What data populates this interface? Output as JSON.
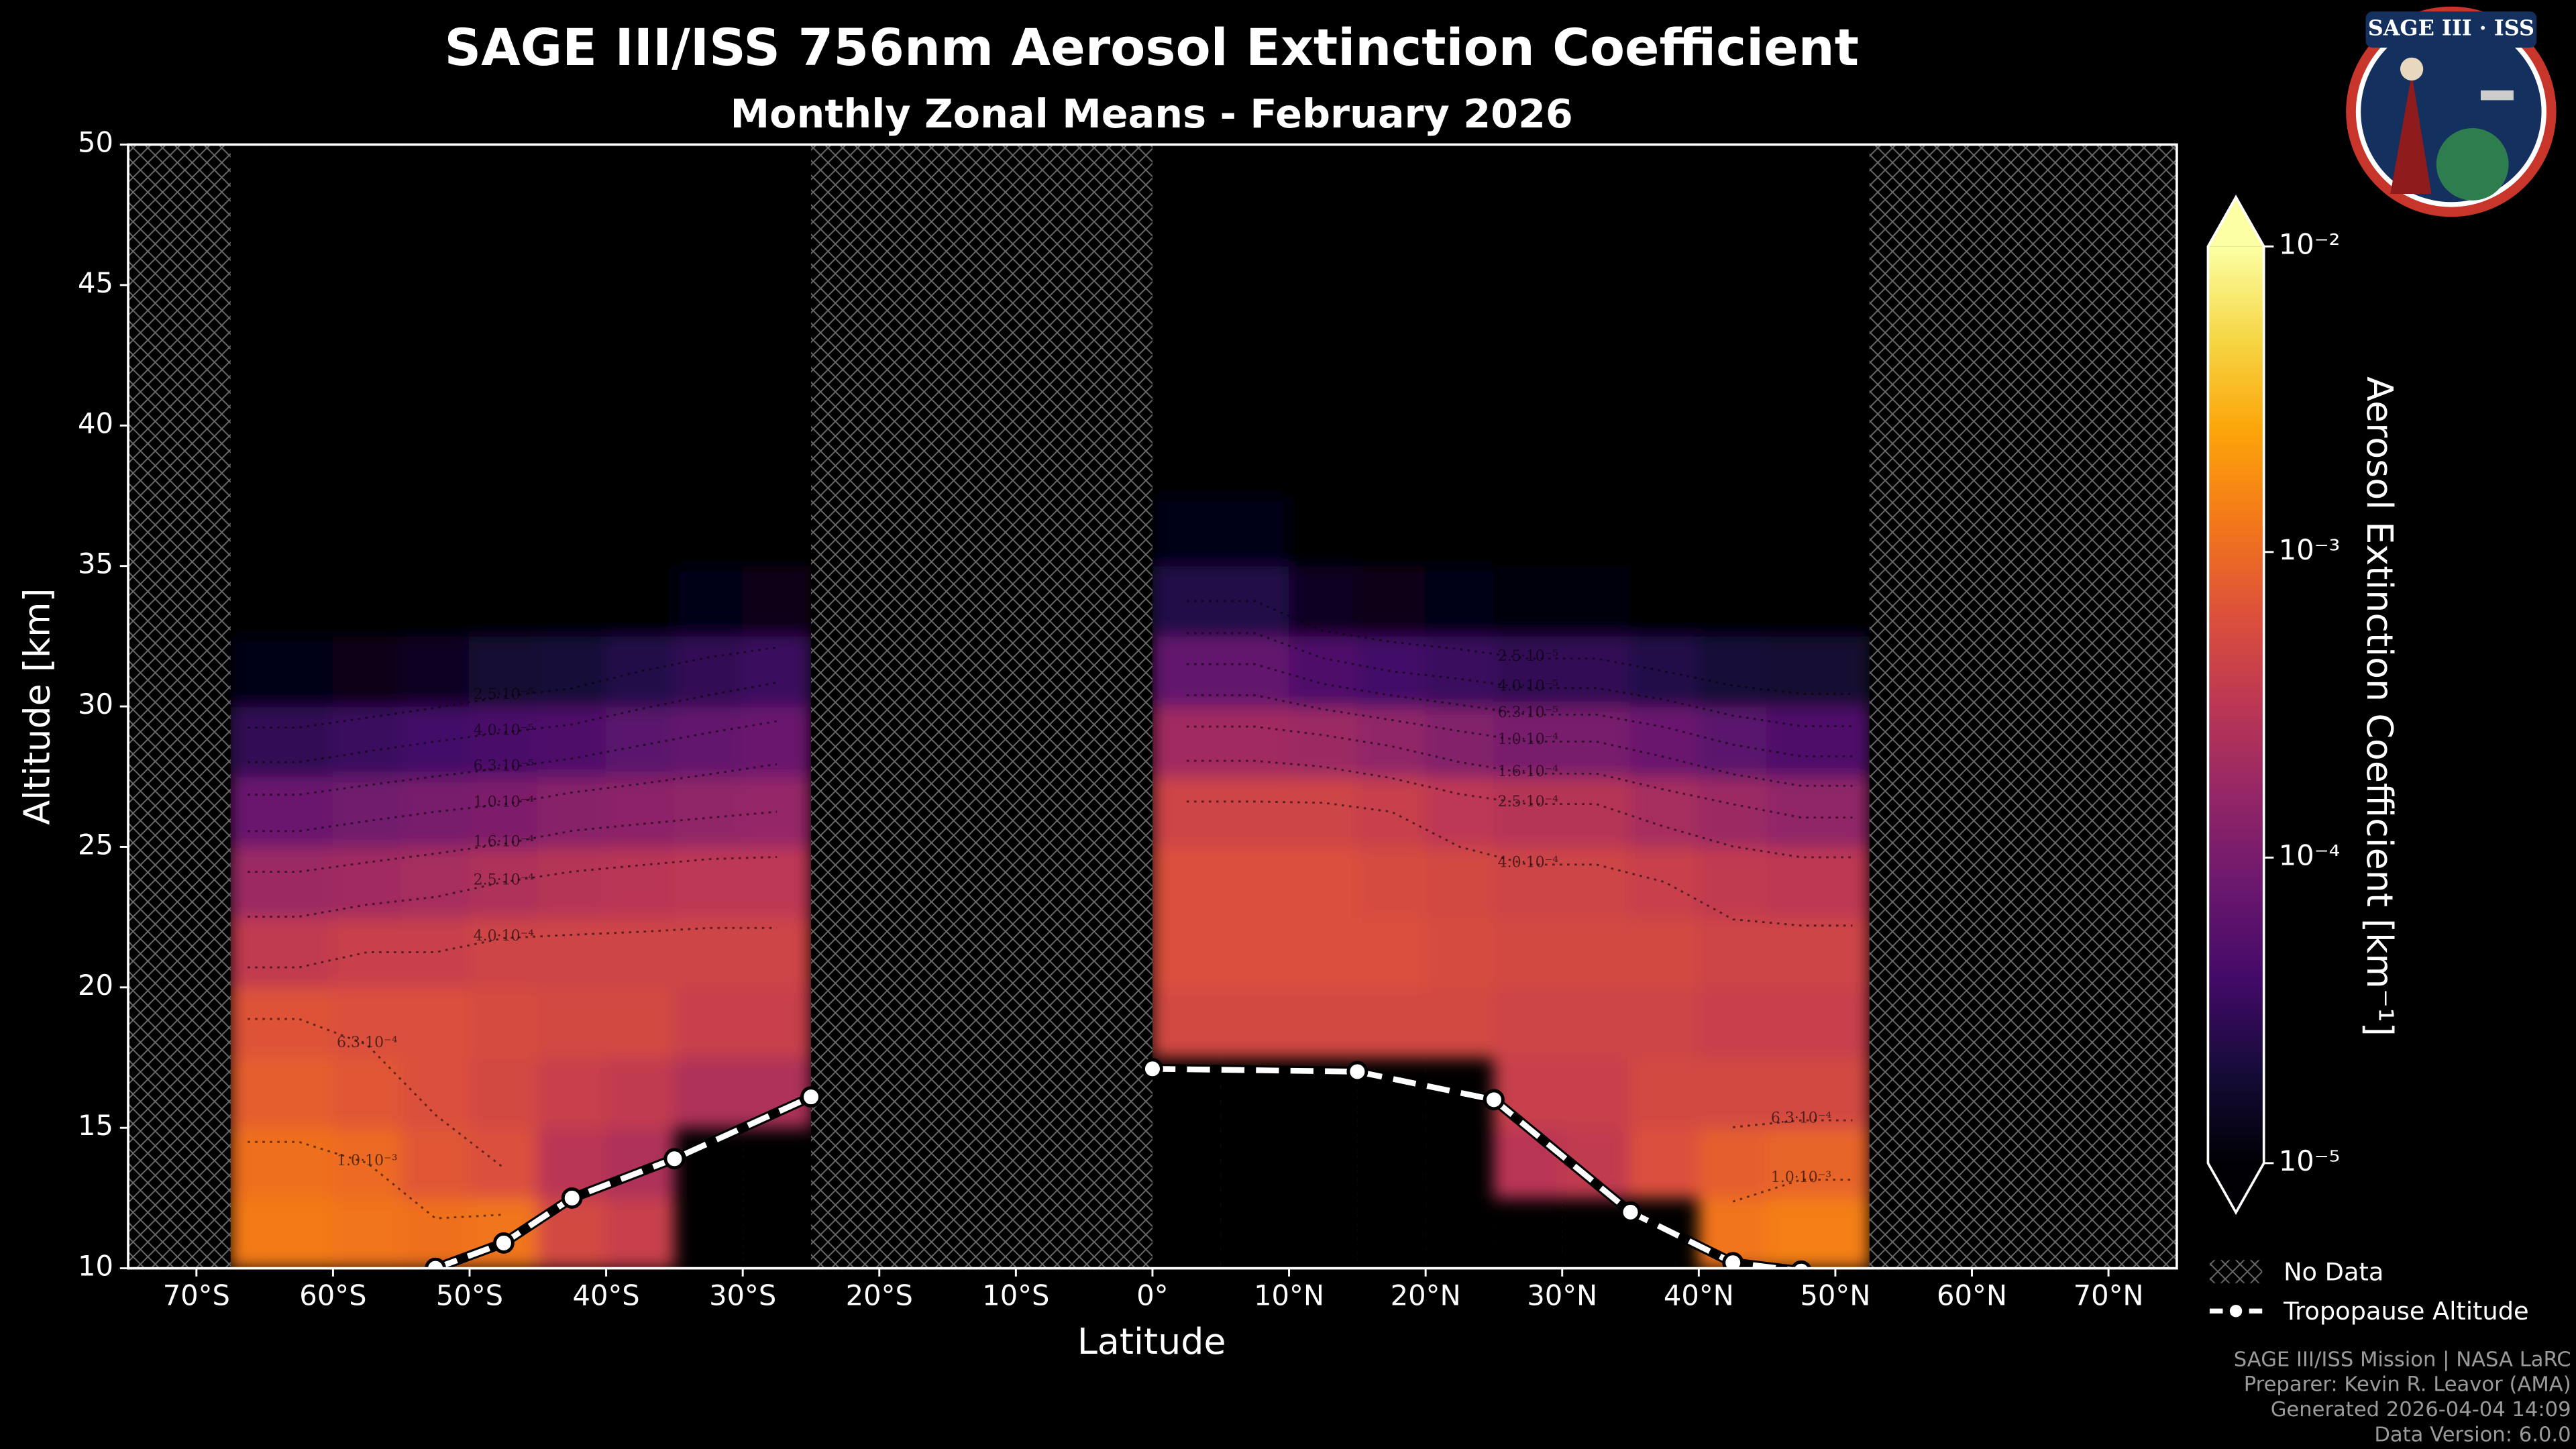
{
  "chart_data": {
    "type": "heatmap",
    "title": "SAGE III/ISS 756nm Aerosol Extinction Coefficient",
    "subtitle": "Monthly Zonal Means - February 2026",
    "xlabel": "Latitude",
    "ylabel": "Altitude [km]",
    "xlim": [
      -75,
      75
    ],
    "ylim": [
      10,
      50
    ],
    "xticks": [
      {
        "value": -70,
        "label": "70°S"
      },
      {
        "value": -60,
        "label": "60°S"
      },
      {
        "value": -50,
        "label": "50°S"
      },
      {
        "value": -40,
        "label": "40°S"
      },
      {
        "value": -30,
        "label": "30°S"
      },
      {
        "value": -20,
        "label": "20°S"
      },
      {
        "value": -10,
        "label": "10°S"
      },
      {
        "value": 0,
        "label": "0°"
      },
      {
        "value": 10,
        "label": "10°N"
      },
      {
        "value": 20,
        "label": "20°N"
      },
      {
        "value": 30,
        "label": "30°N"
      },
      {
        "value": 40,
        "label": "40°N"
      },
      {
        "value": 50,
        "label": "50°N"
      },
      {
        "value": 60,
        "label": "60°N"
      },
      {
        "value": 70,
        "label": "70°N"
      }
    ],
    "yticks": [
      10,
      15,
      20,
      25,
      30,
      35,
      40,
      45,
      50
    ],
    "x_edges": [
      -75,
      -67.5,
      -65,
      -60,
      -55,
      -50,
      -45,
      -40,
      -35,
      -30,
      -25,
      0,
      5,
      10,
      15,
      20,
      25,
      30,
      35,
      40,
      45,
      50,
      52.5,
      75
    ],
    "y_edges": [
      10,
      12.5,
      15,
      17.5,
      20,
      22.5,
      25,
      27.5,
      30,
      32.5,
      35,
      37.5,
      40,
      42.5,
      45,
      47.5,
      50
    ],
    "values": [
      [
        null,
        null,
        null,
        null,
        null,
        null,
        null,
        null,
        null,
        null,
        null,
        null,
        null,
        null,
        null,
        null
      ],
      [
        0.0013,
        0.0011,
        0.0008,
        0.00065,
        0.00035,
        0.00018,
        8e-05,
        3e-05,
        1.2e-05,
        1e-05,
        1e-05,
        1e-05,
        1e-05,
        1e-05,
        1e-05,
        1e-05
      ],
      [
        0.0013,
        0.0011,
        0.0008,
        0.00065,
        0.00035,
        0.00018,
        8e-05,
        3e-05,
        1.2e-05,
        1e-05,
        1e-05,
        1e-05,
        1e-05,
        1e-05,
        1e-05,
        1e-05
      ],
      [
        0.0012,
        0.001,
        0.0007,
        0.0006,
        0.0004,
        0.0002,
        9e-05,
        3.5e-05,
        1.3e-05,
        1e-05,
        1e-05,
        1e-05,
        1e-05,
        1e-05,
        1e-05,
        1e-05
      ],
      [
        0.0011,
        0.0007,
        0.0006,
        0.0006,
        0.0004,
        0.00022,
        0.0001,
        4e-05,
        1.5e-05,
        1e-05,
        1e-05,
        1e-05,
        1e-05,
        1e-05,
        1e-05,
        1e-05
      ],
      [
        0.0012,
        0.0006,
        0.0005,
        0.00055,
        0.00045,
        0.00025,
        0.00011,
        4.5e-05,
        1.8e-05,
        1e-05,
        1e-05,
        1e-05,
        1e-05,
        1e-05,
        1e-05,
        1e-05
      ],
      [
        0.0005,
        0.0003,
        0.0004,
        0.0005,
        0.00045,
        0.00028,
        0.00013,
        5e-05,
        2e-05,
        1e-05,
        1e-05,
        1e-05,
        1e-05,
        1e-05,
        1e-05,
        1e-05
      ],
      [
        0.0004,
        0.00025,
        0.00035,
        0.0005,
        0.00045,
        0.0003,
        0.00014,
        6e-05,
        2.5e-05,
        1e-05,
        1e-05,
        1e-05,
        1e-05,
        1e-05,
        1e-05,
        1e-05
      ],
      [
        null,
        null,
        0.00025,
        0.0004,
        0.00045,
        0.00032,
        0.00015,
        7e-05,
        3e-05,
        1.2e-05,
        1e-05,
        1e-05,
        1e-05,
        1e-05,
        1e-05,
        1e-05
      ],
      [
        null,
        null,
        0.00025,
        0.0004,
        0.00045,
        0.00032,
        0.00016,
        8e-05,
        3.5e-05,
        1.3e-05,
        1e-05,
        1e-05,
        1e-05,
        1e-05,
        1e-05,
        1e-05
      ],
      [
        null,
        null,
        null,
        null,
        null,
        null,
        null,
        null,
        null,
        null,
        null,
        null,
        null,
        null,
        null,
        null
      ],
      [
        null,
        null,
        null,
        0.0005,
        0.0006,
        0.0006,
        0.00045,
        0.0002,
        7e-05,
        2.5e-05,
        1.2e-05,
        1e-05,
        1e-05,
        1e-05,
        1e-05,
        1e-05
      ],
      [
        null,
        null,
        null,
        0.0005,
        0.0006,
        0.0006,
        0.00045,
        0.0002,
        7e-05,
        2.5e-05,
        1.2e-05,
        1e-05,
        1e-05,
        1e-05,
        1e-05,
        1e-05
      ],
      [
        null,
        null,
        null,
        0.0005,
        0.0006,
        0.0006,
        0.00045,
        0.00018,
        5e-05,
        1.5e-05,
        1e-05,
        1e-05,
        1e-05,
        1e-05,
        1e-05,
        1e-05
      ],
      [
        null,
        null,
        null,
        0.0005,
        0.0006,
        0.00055,
        0.0004,
        0.00015,
        4e-05,
        1.3e-05,
        1e-05,
        1e-05,
        1e-05,
        1e-05,
        1e-05,
        1e-05
      ],
      [
        null,
        null,
        null,
        0.0005,
        0.00055,
        0.0005,
        0.00032,
        0.00012,
        3.5e-05,
        1.2e-05,
        1e-05,
        1e-05,
        1e-05,
        1e-05,
        1e-05,
        1e-05
      ],
      [
        null,
        0.0003,
        0.0004,
        0.00045,
        0.0005,
        0.00045,
        0.00028,
        0.0001,
        3e-05,
        1.1e-05,
        1e-05,
        1e-05,
        1e-05,
        1e-05,
        1e-05,
        1e-05
      ],
      [
        null,
        0.00035,
        0.0004,
        0.00045,
        0.0005,
        0.00045,
        0.00028,
        0.0001,
        3e-05,
        1.1e-05,
        1e-05,
        1e-05,
        1e-05,
        1e-05,
        1e-05,
        1e-05
      ],
      [
        null,
        0.0006,
        0.0005,
        0.00045,
        0.0005,
        0.0004,
        0.00022,
        8e-05,
        2.5e-05,
        1e-05,
        1e-05,
        1e-05,
        1e-05,
        1e-05,
        1e-05,
        1e-05
      ],
      [
        0.0012,
        0.0008,
        0.0005,
        0.0004,
        0.00045,
        0.00035,
        0.00018,
        6e-05,
        2e-05,
        1e-05,
        1e-05,
        1e-05,
        1e-05,
        1e-05,
        1e-05,
        1e-05
      ],
      [
        0.0014,
        0.0009,
        0.0005,
        0.0004,
        0.00045,
        0.00033,
        0.00015,
        5e-05,
        1.8e-05,
        1e-05,
        1e-05,
        1e-05,
        1e-05,
        1e-05,
        1e-05,
        1e-05
      ],
      [
        0.0014,
        0.0009,
        0.0005,
        0.0004,
        0.00045,
        0.00033,
        0.00015,
        5e-05,
        1.8e-05,
        1e-05,
        1e-05,
        1e-05,
        1e-05,
        1e-05,
        1e-05,
        1e-05
      ],
      [
        null,
        null,
        null,
        null,
        null,
        null,
        null,
        null,
        null,
        null,
        null,
        null,
        null,
        null,
        null,
        null
      ]
    ],
    "color_scale": "log",
    "colormap": [
      "#000004",
      "#160b39",
      "#420a68",
      "#6a176e",
      "#932667",
      "#bc3754",
      "#dd513a",
      "#f37819",
      "#fca50a",
      "#f6d746",
      "#fcffa4"
    ],
    "clim": [
      1e-05,
      0.01
    ],
    "cticks": [
      {
        "value": 1e-05,
        "label": "10⁻⁵"
      },
      {
        "value": 0.0001,
        "label": "10⁻⁴"
      },
      {
        "value": 0.001,
        "label": "10⁻³"
      },
      {
        "value": 0.01,
        "label": "10⁻²"
      }
    ],
    "colorbar_label": "Aerosol Extinction Coefficient [km⁻¹]",
    "contour_levels": [
      {
        "value": 2.5e-05,
        "label": "2.5·10⁻⁵"
      },
      {
        "value": 4e-05,
        "label": "4.0·10⁻⁵"
      },
      {
        "value": 6.3e-05,
        "label": "6.3·10⁻⁵"
      },
      {
        "value": 0.0001,
        "label": "1.0·10⁻⁴"
      },
      {
        "value": 0.00016,
        "label": "1.6·10⁻⁴"
      },
      {
        "value": 0.00025,
        "label": "2.5·10⁻⁴"
      },
      {
        "value": 0.0004,
        "label": "4.0·10⁻⁴"
      },
      {
        "value": 0.00063,
        "label": "6.3·10⁻⁴"
      },
      {
        "value": 0.001,
        "label": "1.0·10⁻³"
      }
    ],
    "no_data_label": "No Data",
    "tropopause": {
      "name": "Tropopause Altitude",
      "segments": [
        {
          "x": [
            -52.5,
            -47.5,
            -42.5,
            -35,
            -25
          ],
          "values": [
            10,
            10.9,
            12.5,
            13.9,
            16.1
          ]
        },
        {
          "x": [
            0,
            15,
            25,
            35,
            42.5,
            47.5
          ],
          "values": [
            17.1,
            17,
            16,
            12,
            10.2,
            9.9
          ]
        }
      ]
    }
  },
  "logo": {
    "title": "SAGE III · ISS"
  },
  "footer": [
    "SAGE III/ISS Mission | NASA LaRC",
    "Preparer: Kevin R. Leavor (AMA)",
    "Generated 2026-04-04 14:09",
    "Data Version: 6.0.0"
  ]
}
